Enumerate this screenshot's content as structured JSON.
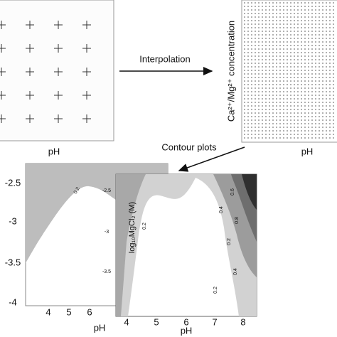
{
  "top_left": {
    "x_label": "pH"
  },
  "arrow_1": {
    "label": "Interpolation"
  },
  "top_right": {
    "y_label": "Ca²⁺/Mg²⁺ concentration",
    "x_label": "pH"
  },
  "arrow_2": {
    "label": "Contour plots"
  },
  "bottom_left": {
    "y_ticks": [
      "-2.5",
      "-3",
      "-3.5",
      "-4"
    ],
    "x_ticks": [
      "4",
      "5",
      "6"
    ],
    "contour_labels": [
      "0.2"
    ],
    "x_label": "pH"
  },
  "bottom_right": {
    "y_label": "log₁₀MgCl₂ (M)",
    "y_ticks": [
      "-2.5",
      "-3",
      "-3.5"
    ],
    "x_ticks": [
      "4",
      "5",
      "6",
      "7",
      "8"
    ],
    "contour_labels": [
      "0.2",
      "0.2",
      "0.4",
      "0.6",
      "0.8",
      "0.4",
      "0.2"
    ],
    "x_label": "pH"
  }
}
